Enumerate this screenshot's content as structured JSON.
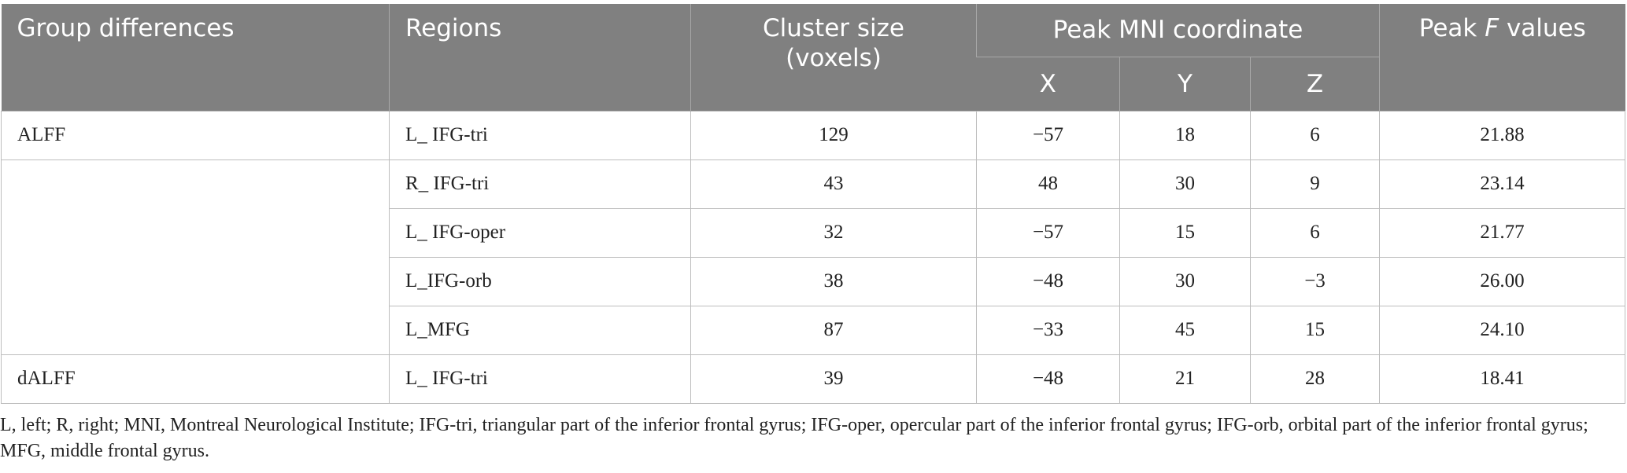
{
  "table": {
    "header": {
      "group": "Group differences",
      "regions": "Regions",
      "cluster": [
        "Cluster size",
        "(voxels)"
      ],
      "peak_mni": "Peak MNI coordinate",
      "x": "X",
      "y": "Y",
      "z": "Z",
      "peak_f": [
        "Peak",
        "F",
        "values"
      ]
    },
    "rows": [
      [
        "ALFF",
        "L_ IFG-tri",
        "129",
        "−57",
        "18",
        "6",
        "21.88"
      ],
      [
        null,
        "R_ IFG-tri",
        "43",
        "48",
        "30",
        "9",
        "23.14"
      ],
      [
        null,
        "L_ IFG-oper",
        "32",
        "−57",
        "15",
        "6",
        "21.77"
      ],
      [
        null,
        "L_IFG-orb",
        "38",
        "−48",
        "30",
        "−3",
        "26.00"
      ],
      [
        null,
        "L_MFG",
        "87",
        "−33",
        "45",
        "15",
        "24.10"
      ],
      [
        "dALFF",
        "L_ IFG-tri",
        "39",
        "−48",
        "21",
        "28",
        "18.41"
      ]
    ]
  },
  "footnote": "L, left; R, right; MNI, Montreal Neurological Institute; IFG-tri, triangular part of the inferior frontal gyrus; IFG-oper, opercular part of the inferior frontal gyrus; IFG-orb, orbital part of the inferior frontal gyrus; MFG, middle frontal gyrus."
}
